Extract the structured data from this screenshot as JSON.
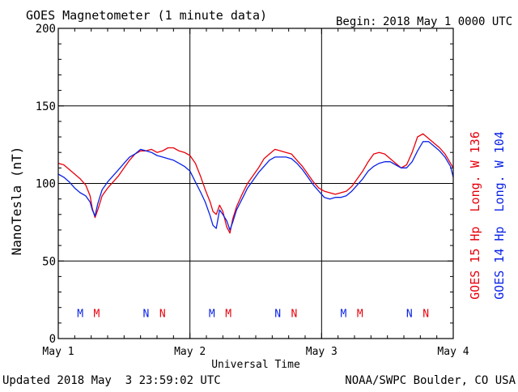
{
  "title": "GOES Magnetometer (1 minute data)",
  "begin_label": "Begin:",
  "begin_value": "2018 May 1 0000 UTC",
  "updated": "Updated 2018 May  3 23:59:02 UTC",
  "credit": "NOAA/SWPC Boulder, CO USA",
  "colors": {
    "goes15": "#e8000b",
    "goes14": "#0a22e6",
    "axis": "#000000"
  },
  "chart_data": {
    "type": "line",
    "title": "GOES Magnetometer (1 minute data)",
    "xlabel": "Universal Time",
    "ylabel": "NanoTesla (nT)",
    "xlim": [
      0,
      72
    ],
    "ylim": [
      0,
      200
    ],
    "x_unit": "hours since 2018 May 1 0000 UTC",
    "yticks": [
      0,
      50,
      100,
      150,
      200
    ],
    "xticks": [
      {
        "x": 0,
        "label": "May 1"
      },
      {
        "x": 24,
        "label": "May 2"
      },
      {
        "x": 48,
        "label": "May 3"
      },
      {
        "x": 72,
        "label": "May 4"
      }
    ],
    "grid": true,
    "series": [
      {
        "name": "GOES 15 Hp  Long. W 136",
        "color": "#e8000b",
        "x": [
          0,
          1,
          2,
          3,
          4,
          5,
          5.8,
          6.2,
          6.7,
          7.2,
          8,
          9,
          10,
          11,
          12,
          13,
          14,
          15,
          16,
          17,
          18,
          19,
          20,
          21,
          22,
          23,
          24,
          25,
          26,
          26.8,
          27.7,
          28.2,
          28.8,
          29.4,
          30,
          30.7,
          31.3,
          31.8,
          32.5,
          33.5,
          34.5,
          35.5,
          36.5,
          37.5,
          38.5,
          39.5,
          40.5,
          41.5,
          42.5,
          43.5,
          44.5,
          45.5,
          46.5,
          47.5,
          48.5,
          49.5,
          50.5,
          51.5,
          52.5,
          53.5,
          54.5,
          55.5,
          56.5,
          57.5,
          58.5,
          59.5,
          60.5,
          61.5,
          62.5,
          63.5,
          64.5,
          65.5,
          66.5,
          67.5,
          68.5,
          69.5,
          70.5,
          71.5,
          72
        ],
        "values": [
          113,
          112,
          109,
          106,
          103,
          99,
          92,
          84,
          78,
          83,
          92,
          97,
          101,
          105,
          110,
          115,
          119,
          121,
          121,
          122,
          120,
          121,
          123,
          123,
          121,
          120,
          118,
          113,
          104,
          96,
          88,
          82,
          80,
          86,
          82,
          72,
          68,
          77,
          85,
          93,
          100,
          105,
          110,
          116,
          119,
          122,
          121,
          120,
          119,
          115,
          111,
          106,
          101,
          97,
          95,
          94,
          93,
          94,
          95,
          98,
          103,
          108,
          114,
          119,
          120,
          119,
          116,
          113,
          110,
          112,
          120,
          130,
          132,
          129,
          126,
          123,
          119,
          113,
          110
        ]
      },
      {
        "name": "GOES 14 Hp  Long. W 104",
        "color": "#0a22e6",
        "x": [
          0,
          1,
          2,
          3,
          4,
          5,
          5.8,
          6.2,
          6.7,
          7.2,
          8,
          9,
          10,
          11,
          12,
          13,
          14,
          15,
          16,
          17,
          18,
          19,
          20,
          21,
          22,
          23,
          24,
          25,
          26,
          26.8,
          27.7,
          28.2,
          28.8,
          29.4,
          30,
          30.7,
          31.3,
          31.8,
          32.5,
          33.5,
          34.5,
          35.5,
          36.5,
          37.5,
          38.5,
          39.5,
          40.5,
          41.5,
          42.5,
          43.5,
          44.5,
          45.5,
          46.5,
          47.5,
          48.5,
          49.5,
          50.5,
          51.5,
          52.5,
          53.5,
          54.5,
          55.5,
          56.5,
          57.5,
          58.5,
          59.5,
          60.5,
          61.5,
          62.5,
          63.5,
          64.5,
          65.5,
          66.5,
          67.5,
          68.5,
          69.5,
          70.5,
          71.5,
          72
        ],
        "values": [
          106,
          104,
          101,
          97,
          94,
          92,
          88,
          83,
          79,
          87,
          96,
          101,
          105,
          109,
          113,
          117,
          119,
          122,
          121,
          120,
          118,
          117,
          116,
          115,
          113,
          111,
          108,
          101,
          94,
          88,
          79,
          73,
          71,
          83,
          80,
          76,
          70,
          75,
          83,
          90,
          97,
          102,
          107,
          111,
          115,
          117,
          117,
          117,
          116,
          113,
          109,
          104,
          99,
          95,
          91,
          90,
          91,
          91,
          92,
          95,
          99,
          103,
          108,
          111,
          113,
          114,
          114,
          112,
          110,
          110,
          114,
          121,
          127,
          127,
          124,
          121,
          117,
          111,
          104
        ]
      }
    ],
    "markers": [
      {
        "x": 4,
        "label": "M",
        "color": "#0a22e6"
      },
      {
        "x": 7,
        "label": "M",
        "color": "#e8000b"
      },
      {
        "x": 16,
        "label": "N",
        "color": "#0a22e6"
      },
      {
        "x": 19,
        "label": "N",
        "color": "#e8000b"
      },
      {
        "x": 28,
        "label": "M",
        "color": "#0a22e6"
      },
      {
        "x": 31,
        "label": "M",
        "color": "#e8000b"
      },
      {
        "x": 40,
        "label": "N",
        "color": "#0a22e6"
      },
      {
        "x": 43,
        "label": "N",
        "color": "#e8000b"
      },
      {
        "x": 52,
        "label": "M",
        "color": "#0a22e6"
      },
      {
        "x": 55,
        "label": "M",
        "color": "#e8000b"
      },
      {
        "x": 64,
        "label": "N",
        "color": "#0a22e6"
      },
      {
        "x": 67,
        "label": "N",
        "color": "#e8000b"
      }
    ],
    "marker_y": 17
  }
}
